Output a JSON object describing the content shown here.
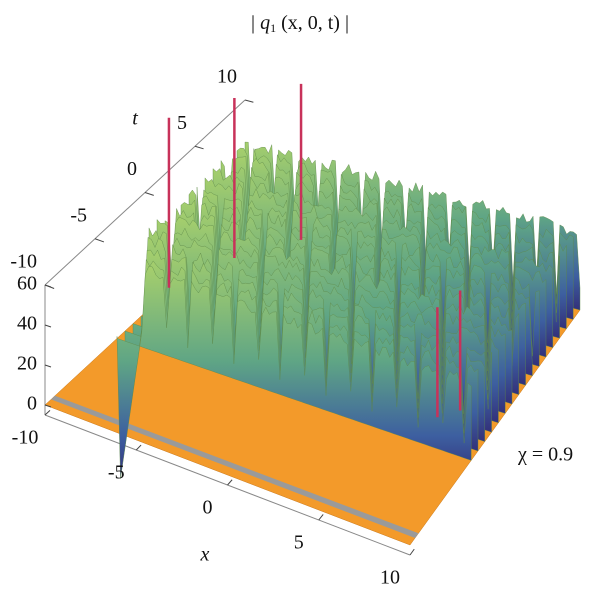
{
  "chart_data": {
    "type": "surface3d",
    "title_parts": [
      "| ",
      "q",
      "1",
      " (x, 0, t) |"
    ],
    "x_label": "x",
    "t_label": "t",
    "annotation": "χ = 0.9",
    "xlim": [
      -10,
      10
    ],
    "xticks": [
      -10,
      -5,
      0,
      5,
      10
    ],
    "tlim": [
      -10,
      10
    ],
    "tticks": [
      -10,
      -5,
      0,
      5,
      10
    ],
    "zlim": [
      -5,
      60
    ],
    "zticks": [
      0,
      20,
      40,
      60
    ]
  }
}
